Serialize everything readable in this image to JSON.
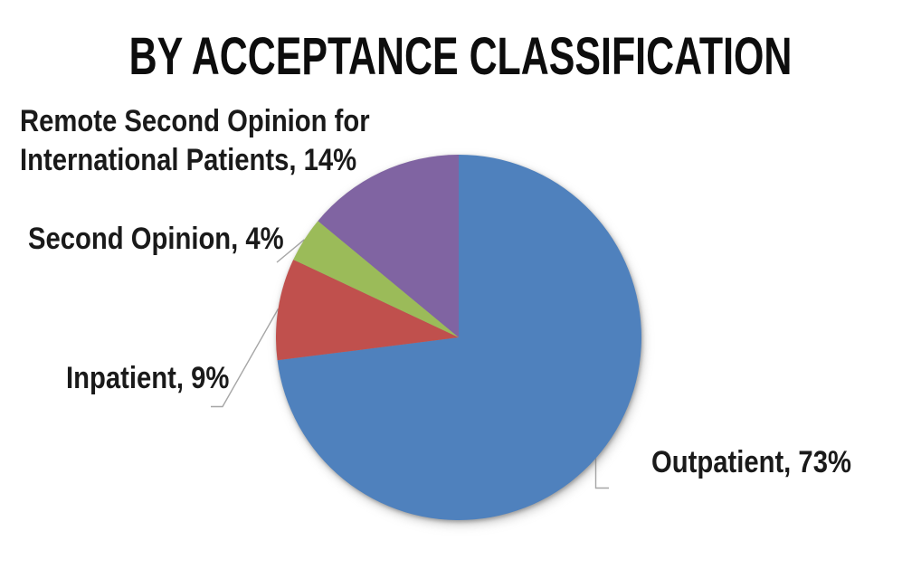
{
  "colors": {
    "background": "#FFFFFF",
    "title_text": "#0D0D0D",
    "label_text": "#1A1A1A",
    "leader_line": "#A6A6A6"
  },
  "chart_data": {
    "type": "pie",
    "title": "BY ACCEPTANCE CLASSIFICATION",
    "start_angle_deg": 0,
    "direction": "clockwise",
    "legend": "none",
    "labels_position": "outside-callout",
    "unit": "%",
    "slices": [
      {
        "label": "Outpatient",
        "value": 73,
        "color": "#4F81BD",
        "data_label": "Outpatient, 73%"
      },
      {
        "label": "Inpatient",
        "value": 9,
        "color": "#C0504D",
        "data_label": "Inpatient, 9%"
      },
      {
        "label": "Second Opinion",
        "value": 4,
        "color": "#9BBB59",
        "data_label": "Second Opinion, 4%"
      },
      {
        "label": "Remote Second Opinion for International Patients",
        "value": 14,
        "color": "#8064A2",
        "data_label": "Remote Second Opinion for International Patients, 14%",
        "data_label_lines": [
          "Remote Second Opinion for",
          "International Patients, 14%"
        ]
      }
    ]
  }
}
